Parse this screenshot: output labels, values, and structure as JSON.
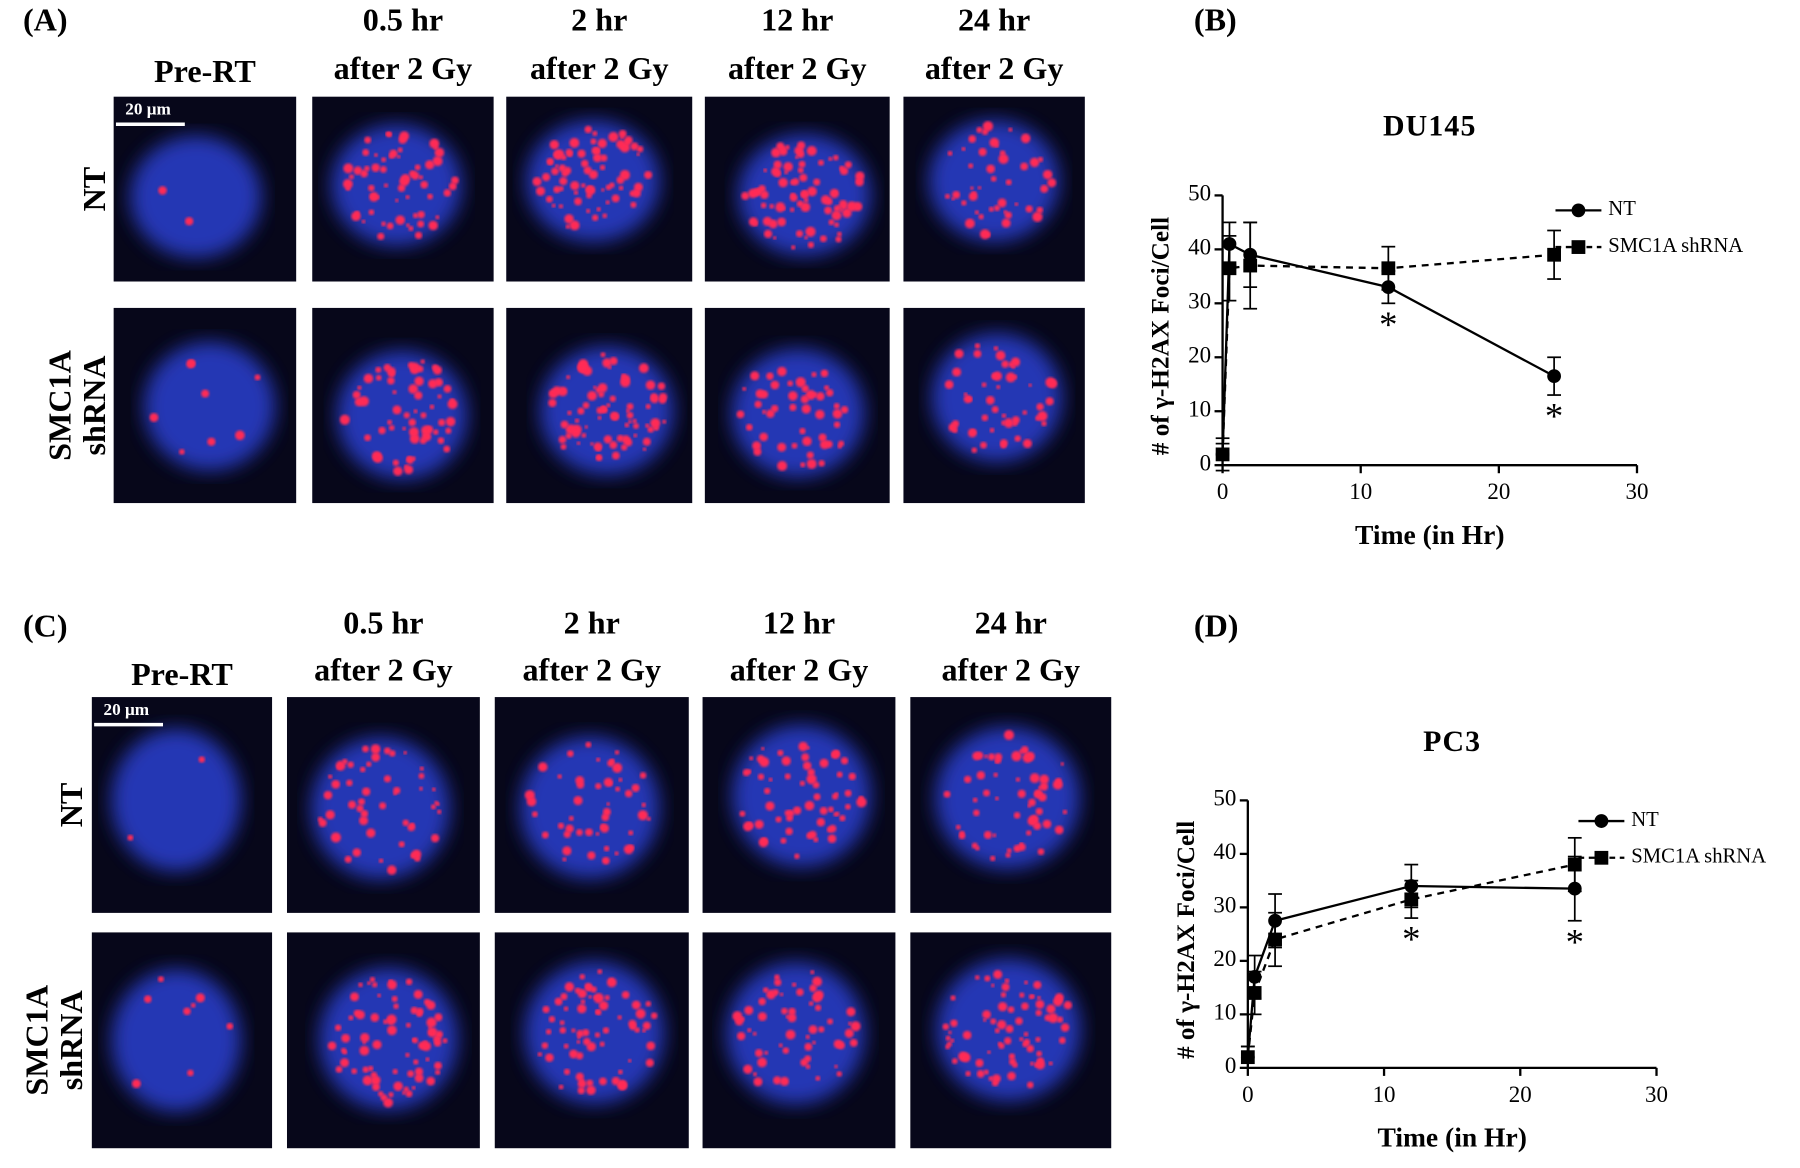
{
  "panels": [
    {
      "label": "(A)",
      "columns": [
        [
          "Pre-RT"
        ],
        [
          "0.5 hr",
          "after 2 Gy"
        ],
        [
          "2 hr",
          "after 2 Gy"
        ],
        [
          "12 hr",
          "after 2 Gy"
        ],
        [
          "24 hr",
          "after 2 Gy"
        ]
      ],
      "rows": [
        [
          "NT"
        ],
        [
          "SMC1A",
          "shRNA"
        ]
      ],
      "scale_bar": "20 μm"
    },
    {
      "label": "(C)",
      "columns": [
        [
          "Pre-RT"
        ],
        [
          "0.5 hr",
          "after 2 Gy"
        ],
        [
          "2 hr",
          "after 2 Gy"
        ],
        [
          "12 hr",
          "after 2 Gy"
        ],
        [
          "24 hr",
          "after 2 Gy"
        ]
      ],
      "rows": [
        [
          "NT"
        ],
        [
          "SMC1A",
          "shRNA"
        ]
      ],
      "scale_bar": "20 μm"
    }
  ],
  "chart_data": [
    {
      "type": "line",
      "panel_label": "(B)",
      "title": "DU145",
      "x_label": "Time (in Hr)",
      "y_label": "# of γ-H2AX Foci/Cell",
      "x": [
        0,
        0.5,
        2,
        12,
        24
      ],
      "xlim": [
        0,
        30
      ],
      "xticks": [
        0,
        10,
        20,
        30
      ],
      "ylim": [
        0,
        50
      ],
      "yticks": [
        0,
        10,
        20,
        30,
        40,
        50
      ],
      "series": [
        {
          "name": "NT",
          "color": "#000000",
          "marker": "circle",
          "dashed": false,
          "values": [
            2,
            41,
            39,
            33,
            16.5
          ],
          "errors": [
            2,
            4,
            6,
            3,
            3.5
          ]
        },
        {
          "name": "SMC1A shRNA",
          "color": "#000000",
          "marker": "square",
          "dashed": true,
          "values": [
            2,
            36.5,
            37,
            36.5,
            39
          ],
          "errors": [
            3,
            6,
            8,
            4,
            4.5
          ]
        }
      ],
      "annotations": [
        {
          "text": "*",
          "x": 12
        },
        {
          "text": "*",
          "x": 24
        }
      ]
    },
    {
      "type": "line",
      "panel_label": "(D)",
      "title": "PC3",
      "x_label": "Time (in Hr)",
      "y_label": "# of γ-H2AX Foci/Cell",
      "x": [
        0,
        0.5,
        2,
        12,
        24
      ],
      "xlim": [
        0,
        30
      ],
      "xticks": [
        0,
        10,
        20,
        30
      ],
      "ylim": [
        0,
        50
      ],
      "yticks": [
        0,
        10,
        20,
        30,
        40,
        50
      ],
      "series": [
        {
          "name": "NT",
          "color": "#000000",
          "marker": "circle",
          "dashed": false,
          "values": [
            2,
            17,
            27.5,
            34,
            33.5
          ],
          "errors": [
            2,
            4,
            5,
            4,
            6
          ]
        },
        {
          "name": "SMC1A shRNA",
          "color": "#000000",
          "marker": "square",
          "dashed": true,
          "values": [
            2,
            14,
            24,
            31.5,
            38
          ],
          "errors": [
            2,
            4,
            5,
            3.5,
            5
          ]
        }
      ],
      "annotations": [
        {
          "text": "*",
          "x": 12
        },
        {
          "text": "*",
          "x": 24
        }
      ]
    }
  ]
}
